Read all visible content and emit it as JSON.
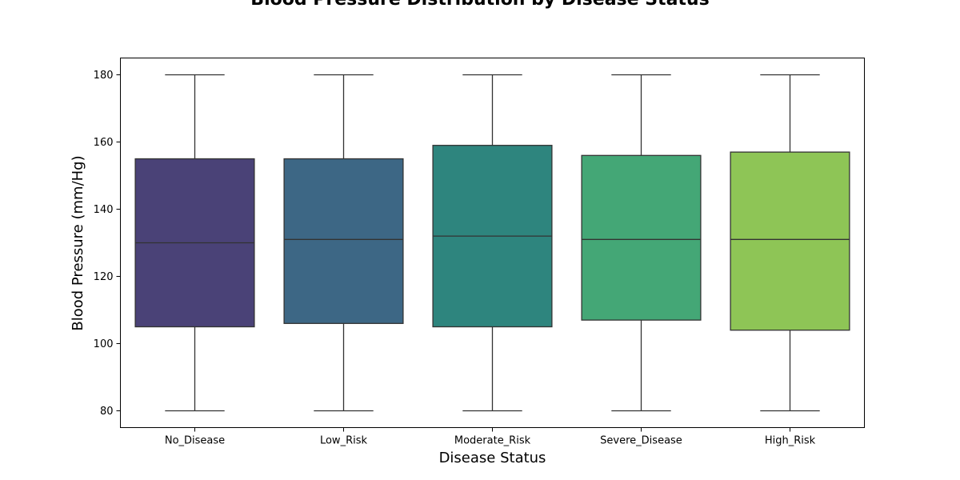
{
  "chart_data": {
    "type": "box",
    "title": "Blood Pressure Distribution by Disease Status",
    "xlabel": "Disease Status",
    "ylabel": "Blood Pressure (mm/Hg)",
    "ylim": [
      75,
      185
    ],
    "yticks": [
      80,
      100,
      120,
      140,
      160,
      180
    ],
    "ytick_labels": [
      "80",
      "100",
      "120",
      "140",
      "160",
      "180"
    ],
    "grid": false,
    "categories": [
      "No_Disease",
      "Low_Risk",
      "Moderate_Risk",
      "Severe_Disease",
      "High_Risk"
    ],
    "boxes": [
      {
        "category": "No_Disease",
        "whisker_low": 80,
        "q1": 105,
        "median": 130,
        "q3": 155,
        "whisker_high": 180,
        "color": "#4a4277"
      },
      {
        "category": "Low_Risk",
        "whisker_low": 80,
        "q1": 106,
        "median": 131,
        "q3": 155,
        "whisker_high": 180,
        "color": "#3d6785"
      },
      {
        "category": "Moderate_Risk",
        "whisker_low": 80,
        "q1": 105,
        "median": 132,
        "q3": 159,
        "whisker_high": 180,
        "color": "#2e857e"
      },
      {
        "category": "Severe_Disease",
        "whisker_low": 80,
        "q1": 107,
        "median": 131,
        "q3": 156,
        "whisker_high": 180,
        "color": "#44a776"
      },
      {
        "category": "High_Risk",
        "whisker_low": 80,
        "q1": 104,
        "median": 131,
        "q3": 157,
        "whisker_high": 180,
        "color": "#8ec556"
      }
    ]
  }
}
